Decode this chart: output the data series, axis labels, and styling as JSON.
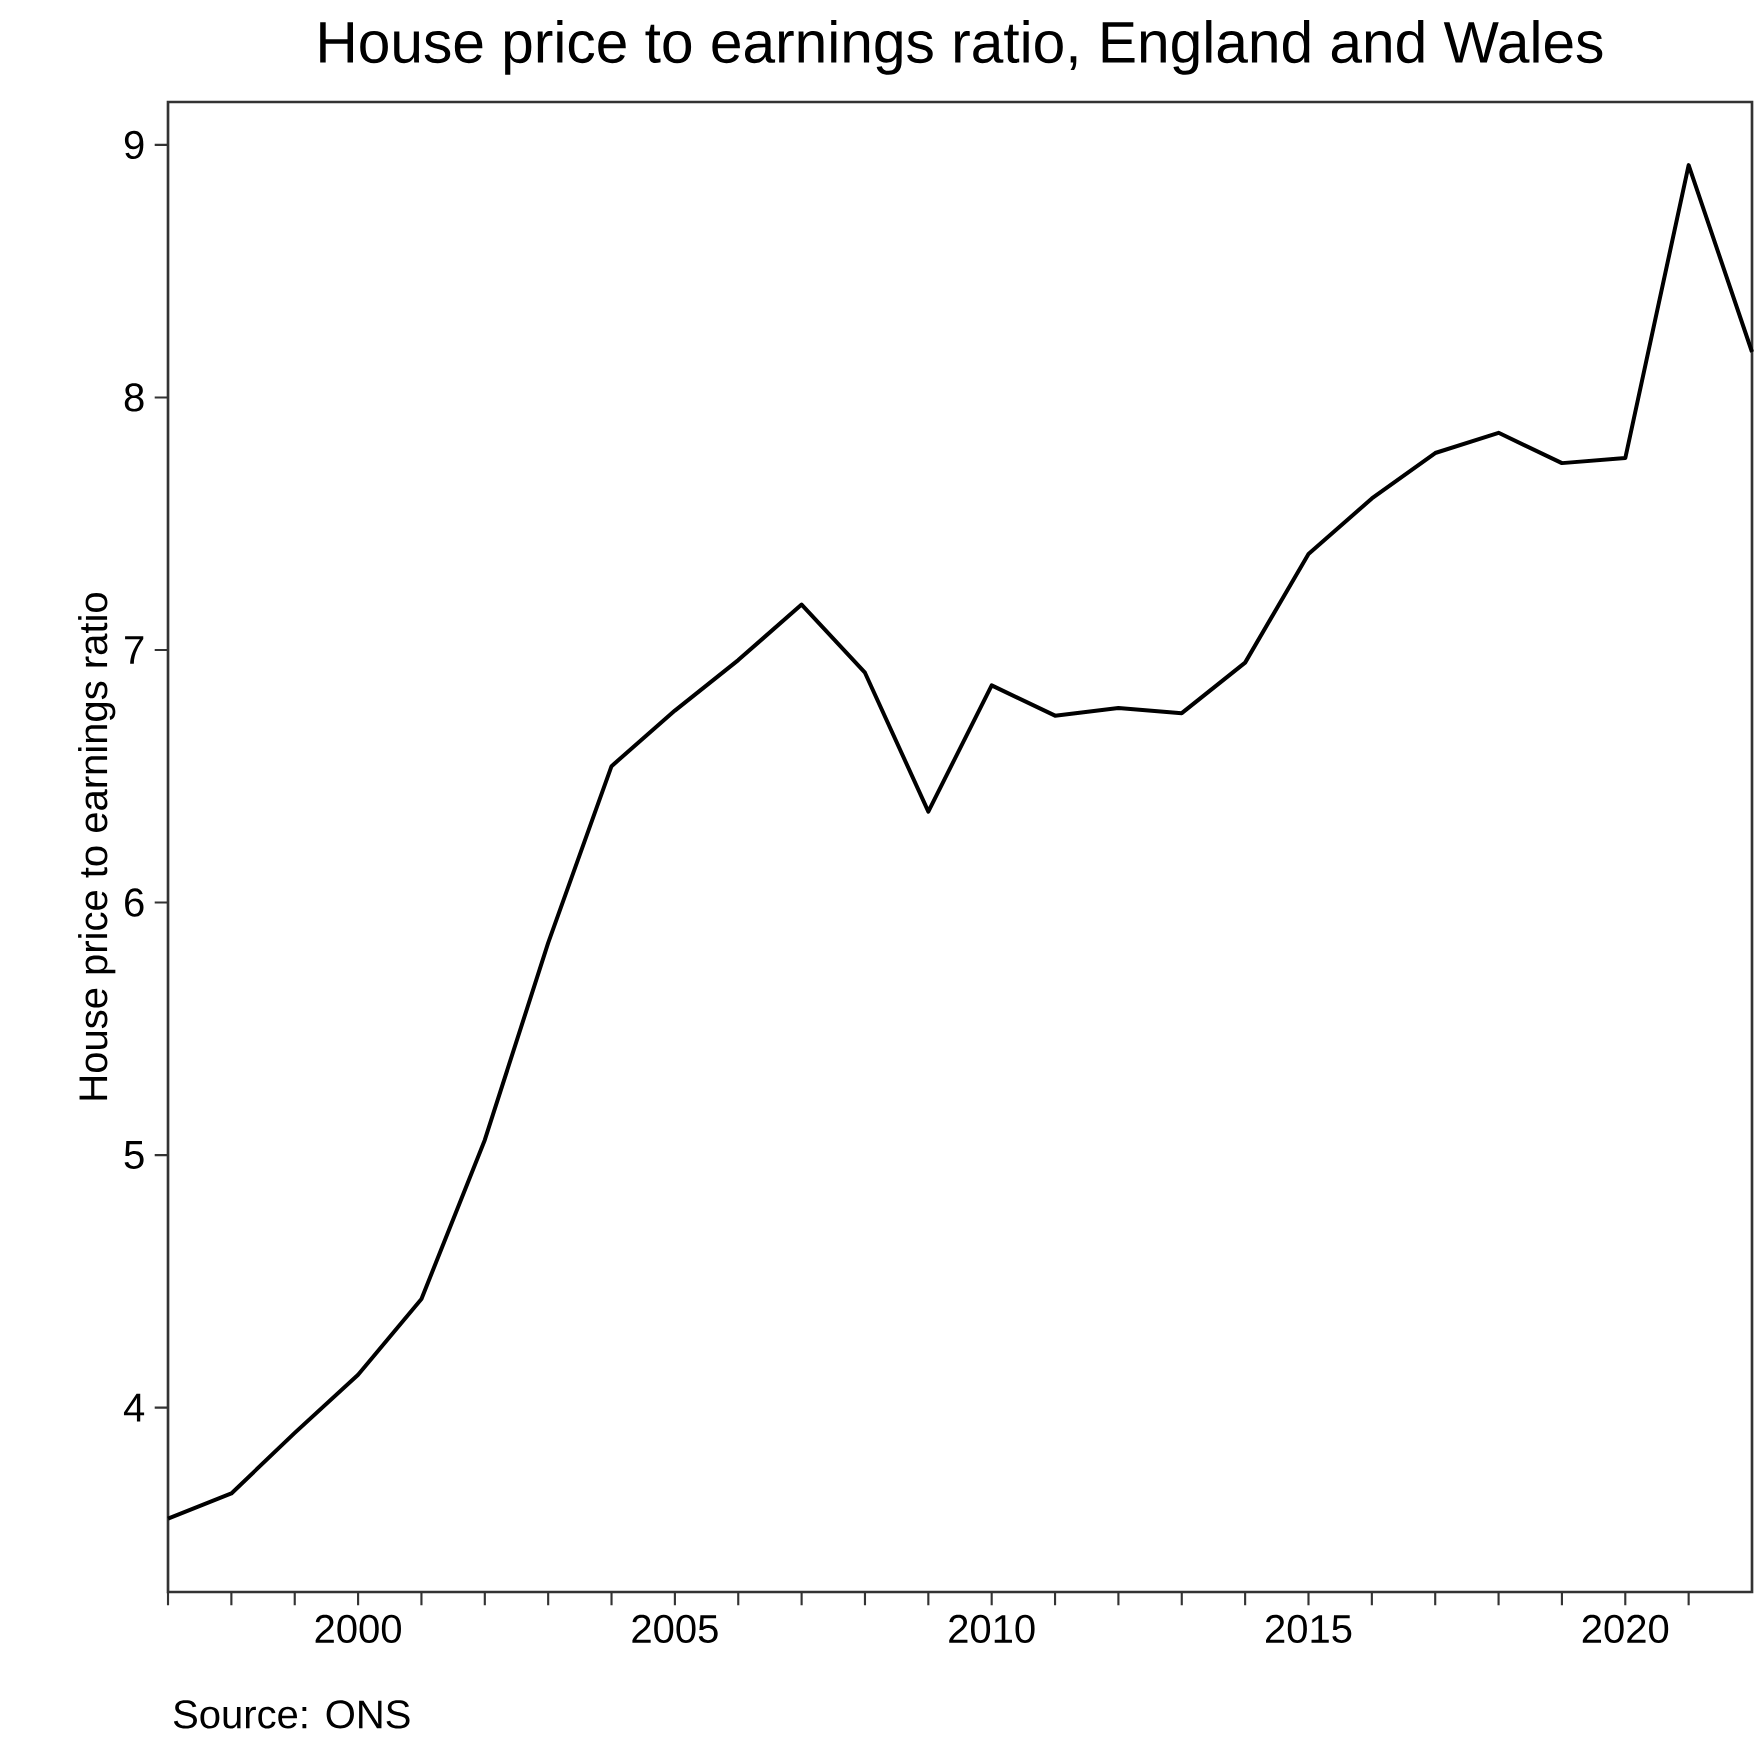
{
  "chart_data": {
    "type": "line",
    "title": "House price to earnings ratio, England and Wales",
    "ylabel": "House price to earnings ratio",
    "annotations": [
      "Source: ONS"
    ],
    "x": [
      1997,
      1998,
      1999,
      2000,
      2001,
      2002,
      2003,
      2004,
      2005,
      2006,
      2007,
      2008,
      2009,
      2010,
      2011,
      2012,
      2013,
      2014,
      2015,
      2016,
      2017,
      2018,
      2019,
      2020,
      2021,
      2022
    ],
    "series": [
      {
        "color": "#000000",
        "values": [
          3.56,
          3.66,
          3.9,
          4.13,
          4.43,
          5.06,
          5.84,
          6.54,
          6.76,
          6.96,
          7.18,
          6.91,
          6.36,
          6.86,
          6.74,
          6.77,
          6.75,
          6.95,
          7.38,
          7.6,
          7.78,
          7.86,
          7.74,
          7.76,
          8.92,
          8.18
        ]
      }
    ],
    "xlim": [
      1997,
      2022
    ],
    "ylim": [
      3.27,
      9.17
    ],
    "xticks": [
      {
        "value": 1997,
        "label": null
      },
      {
        "value": 1998,
        "label": null
      },
      {
        "value": 1999,
        "label": null
      },
      2000,
      {
        "value": 2001,
        "label": null
      },
      {
        "value": 2002,
        "label": null
      },
      {
        "value": 2003,
        "label": null
      },
      {
        "value": 2004,
        "label": null
      },
      2005,
      {
        "value": 2006,
        "label": null
      },
      {
        "value": 2007,
        "label": null
      },
      {
        "value": 2008,
        "label": null
      },
      {
        "value": 2009,
        "label": null
      },
      2010,
      {
        "value": 2011,
        "label": null
      },
      {
        "value": 2012,
        "label": null
      },
      {
        "value": 2013,
        "label": null
      },
      {
        "value": 2014,
        "label": null
      },
      2015,
      {
        "value": 2016,
        "label": null
      },
      {
        "value": 2017,
        "label": null
      },
      {
        "value": 2018,
        "label": null
      },
      {
        "value": 2019,
        "label": null
      },
      2020,
      {
        "value": 2021,
        "label": null
      }
    ],
    "yticks": [
      4,
      5,
      6,
      7,
      8,
      9
    ],
    "grid": false,
    "marker": "none",
    "line_style": "solid"
  }
}
